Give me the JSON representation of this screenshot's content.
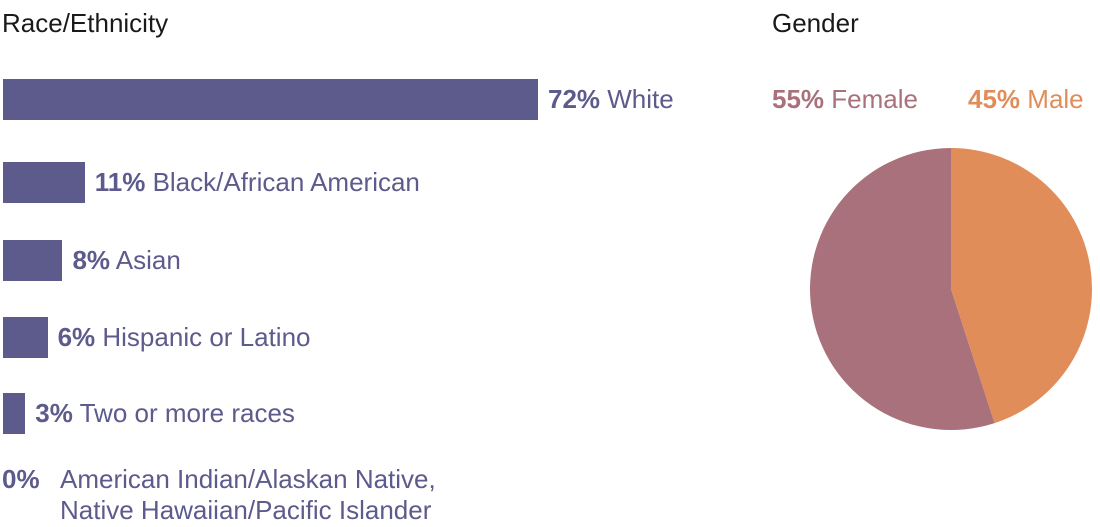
{
  "colors": {
    "bar": "#5d5a8c",
    "text_label": "#5d5a8c",
    "female": "#a9717c",
    "male": "#e08d5a",
    "title": "#1a1a1a"
  },
  "chart_data": [
    {
      "type": "bar",
      "orientation": "horizontal",
      "title": "Race/Ethnicity",
      "unit": "%",
      "categories": [
        "White",
        "Black/African American",
        "Asian",
        "Hispanic or Latino",
        "Two or more races",
        "American Indian/Alaskan Native, Native Hawaiian/Pacific Islander"
      ],
      "values": [
        72,
        11,
        8,
        6,
        3,
        0
      ],
      "value_labels": [
        "72%",
        "11%",
        "8%",
        "6%",
        "3%",
        "0%"
      ],
      "zero_label_lines": [
        "American Indian/Alaskan Native,",
        "Native Hawaiian/Pacific Islander"
      ]
    },
    {
      "type": "pie",
      "title": "Gender",
      "categories": [
        "Female",
        "Male"
      ],
      "values": [
        55,
        45
      ],
      "value_labels": [
        "55%",
        "45%"
      ]
    }
  ]
}
